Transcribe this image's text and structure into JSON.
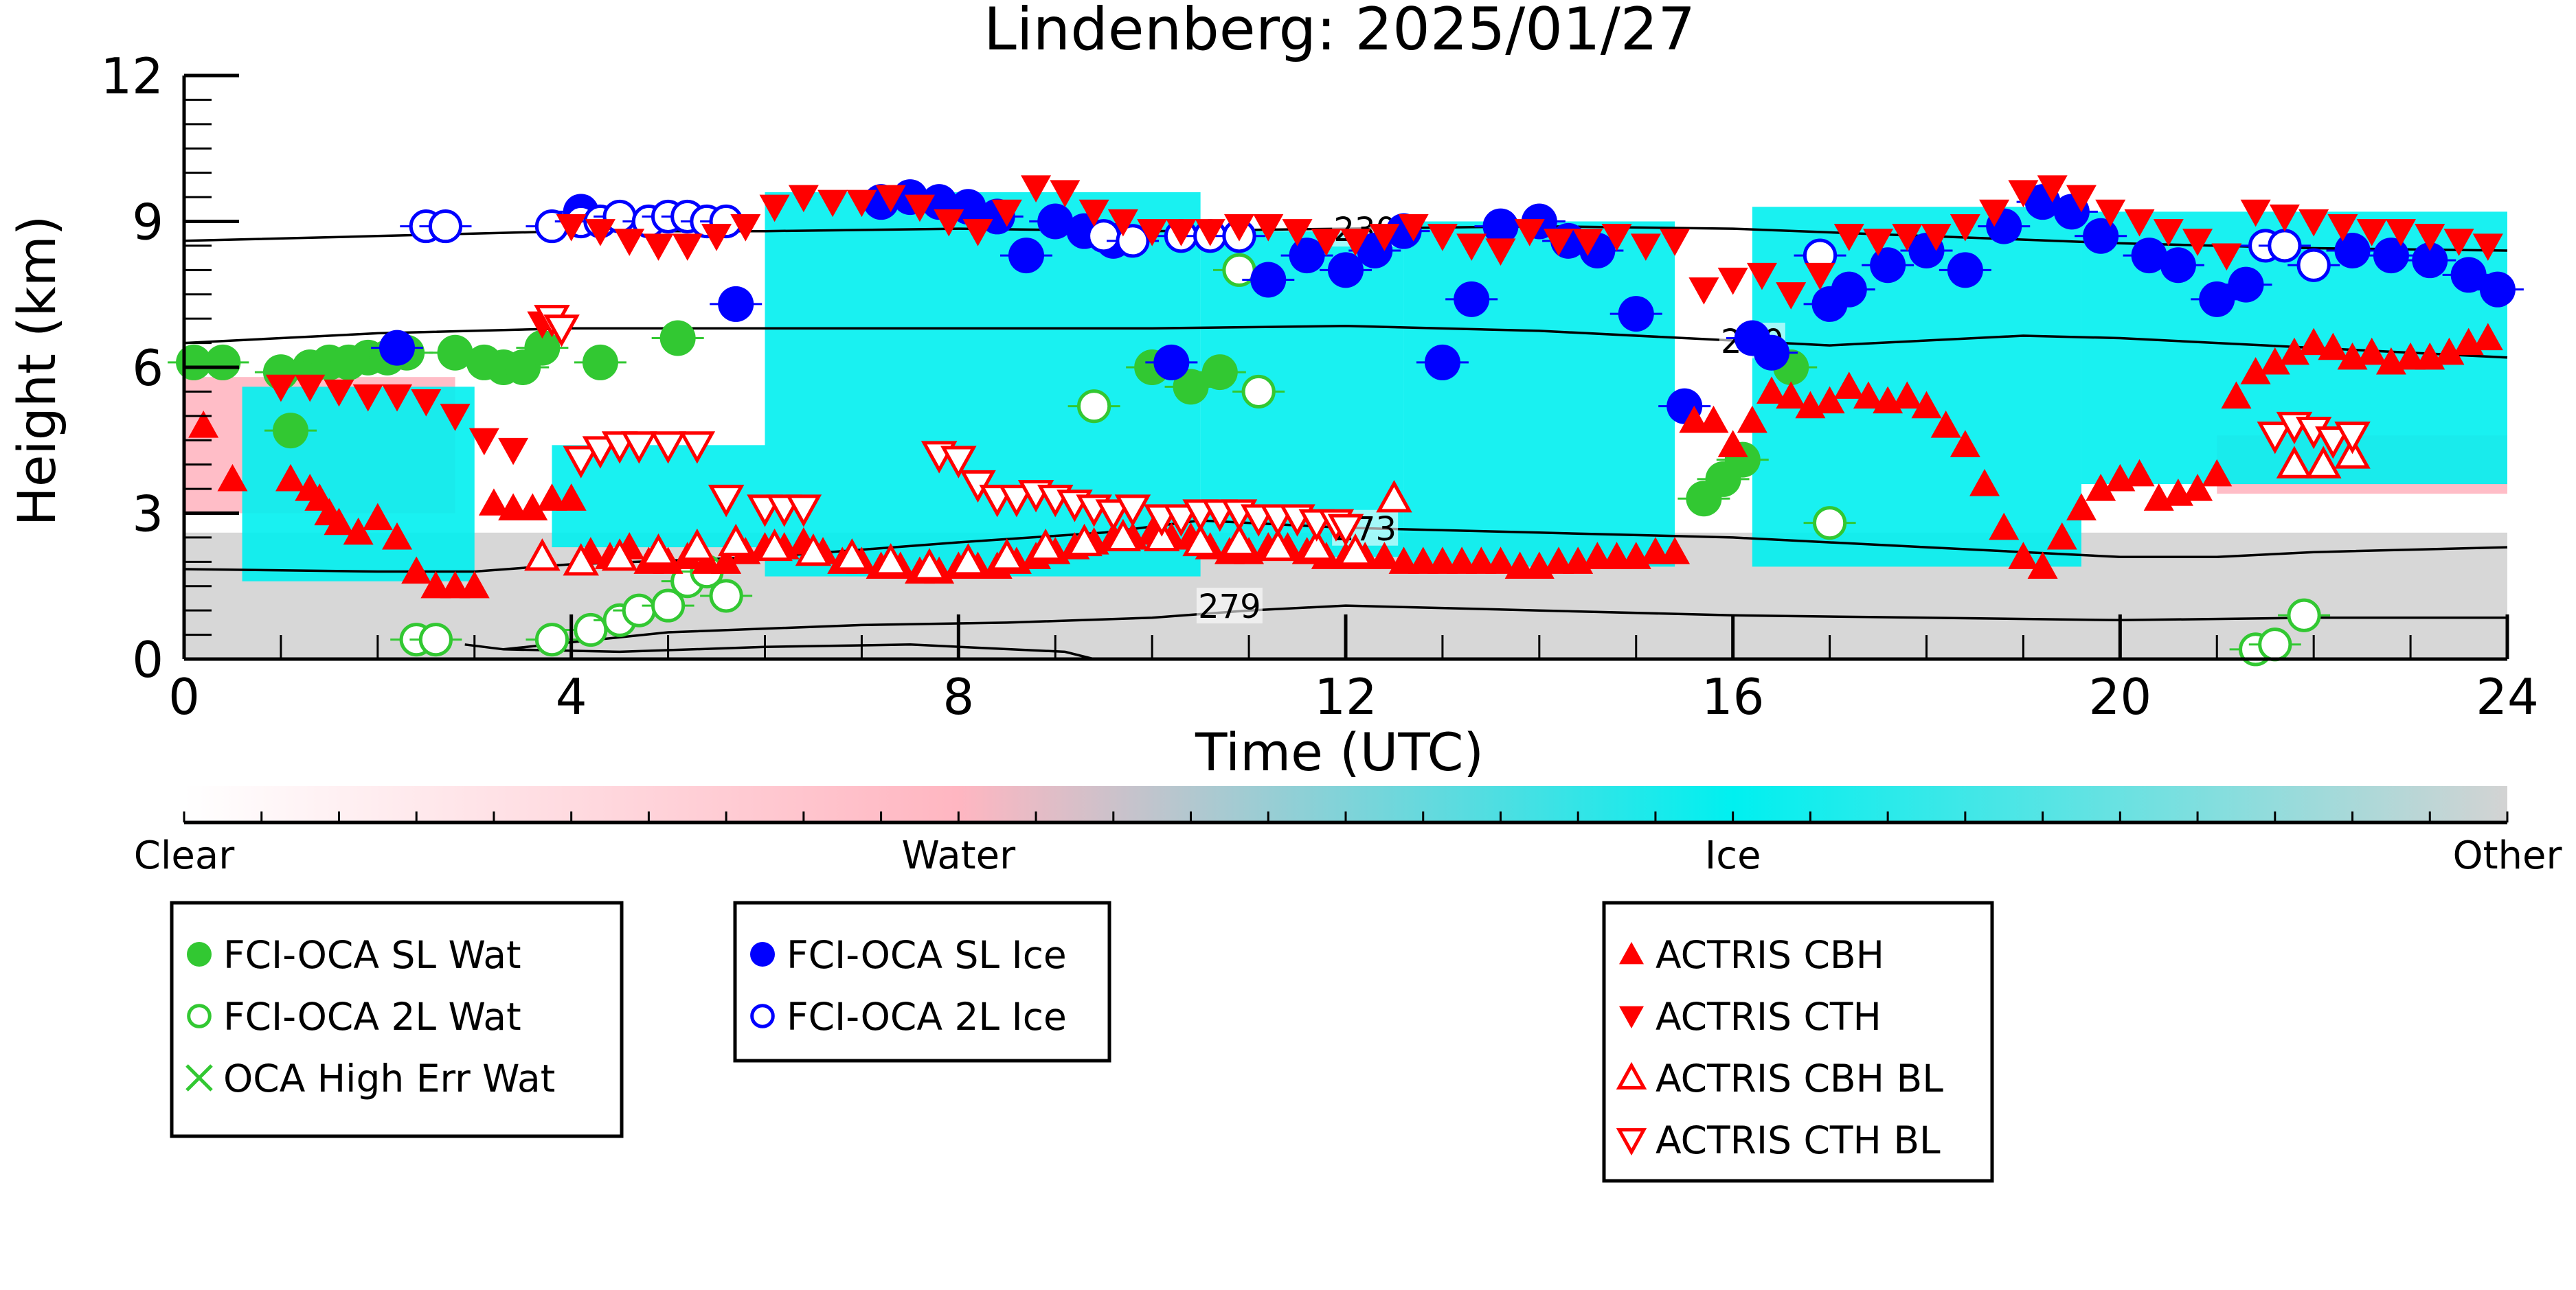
{
  "chart_data": {
    "type": "scatter",
    "title": "Lindenberg: 2025/01/27",
    "xlabel": "Time (UTC)",
    "ylabel": "Height (km)",
    "xlim": [
      0,
      24
    ],
    "ylim": [
      0,
      12
    ],
    "x_ticks": [
      "0",
      "4",
      "8",
      "12",
      "16",
      "20",
      "24"
    ],
    "y_ticks": [
      "0",
      "3",
      "6",
      "9",
      "12"
    ],
    "colorbar": {
      "labels": [
        "Clear",
        "Water",
        "Ice",
        "Other"
      ],
      "colors": [
        "#ffffff",
        "#ffb6c1",
        "#00f0f0",
        "#d3d3d3"
      ]
    },
    "classification_background": [
      {
        "class": "Ice",
        "x_range": [
          0.6,
          3.0
        ],
        "bottom": 1.6,
        "top": 5.6
      },
      {
        "class": "Ice",
        "x_range": [
          3.8,
          6.0
        ],
        "bottom": 2.3,
        "top": 4.4
      },
      {
        "class": "Ice",
        "x_range": [
          6.0,
          10.5
        ],
        "bottom": 1.7,
        "top": 9.6
      },
      {
        "class": "Ice",
        "x_range": [
          10.5,
          12.6
        ],
        "bottom": 2.1,
        "top": 8.8
      },
      {
        "class": "Ice",
        "x_range": [
          12.6,
          15.4
        ],
        "bottom": 1.9,
        "top": 9.0
      },
      {
        "class": "Ice",
        "x_range": [
          16.2,
          19.6
        ],
        "bottom": 1.9,
        "top": 9.3
      },
      {
        "class": "Ice",
        "x_range": [
          19.6,
          24.0
        ],
        "bottom": 3.6,
        "top": 9.2
      },
      {
        "class": "Water",
        "x_range": [
          0.0,
          2.8
        ],
        "bottom": 3.0,
        "top": 5.8
      },
      {
        "class": "Water",
        "x_range": [
          21.0,
          24.0
        ],
        "bottom": 3.4,
        "top": 4.6
      },
      {
        "class": "Other",
        "x_range": [
          0.0,
          24.0
        ],
        "bottom": 0.0,
        "top": 2.6
      }
    ],
    "contours": [
      {
        "label": "230",
        "points": [
          [
            0,
            8.6
          ],
          [
            2,
            8.7
          ],
          [
            4,
            8.8
          ],
          [
            6,
            8.8
          ],
          [
            8,
            8.85
          ],
          [
            10,
            8.8
          ],
          [
            12,
            8.85
          ],
          [
            14,
            8.9
          ],
          [
            16,
            8.85
          ],
          [
            18,
            8.7
          ],
          [
            20,
            8.55
          ],
          [
            22,
            8.45
          ],
          [
            24,
            8.4
          ]
        ]
      },
      {
        "label": "250",
        "points": [
          [
            0,
            6.5
          ],
          [
            2,
            6.7
          ],
          [
            4,
            6.8
          ],
          [
            6,
            6.8
          ],
          [
            8,
            6.8
          ],
          [
            10,
            6.8
          ],
          [
            12,
            6.85
          ],
          [
            14,
            6.75
          ],
          [
            16,
            6.55
          ],
          [
            17,
            6.45
          ],
          [
            18,
            6.55
          ],
          [
            19,
            6.65
          ],
          [
            20,
            6.6
          ],
          [
            21,
            6.5
          ],
          [
            22,
            6.4
          ],
          [
            24,
            6.2
          ]
        ]
      },
      {
        "label": "273",
        "points": [
          [
            0,
            1.85
          ],
          [
            2,
            1.8
          ],
          [
            3,
            1.8
          ],
          [
            4,
            1.95
          ],
          [
            6,
            2.1
          ],
          [
            8,
            2.4
          ],
          [
            9.5,
            2.6
          ],
          [
            10.5,
            2.85
          ],
          [
            12,
            2.7
          ],
          [
            14,
            2.6
          ],
          [
            16,
            2.5
          ],
          [
            18,
            2.3
          ],
          [
            20,
            2.1
          ],
          [
            21,
            2.1
          ],
          [
            22,
            2.2
          ],
          [
            24,
            2.3
          ]
        ]
      },
      {
        "label": "279",
        "points": [
          [
            3.3,
            0.2
          ],
          [
            5,
            0.55
          ],
          [
            7,
            0.7
          ],
          [
            8.5,
            0.75
          ],
          [
            10,
            0.85
          ],
          [
            11,
            1.0
          ],
          [
            12,
            1.1
          ],
          [
            14,
            1.0
          ],
          [
            16,
            0.9
          ],
          [
            18,
            0.85
          ],
          [
            20,
            0.8
          ],
          [
            22,
            0.85
          ],
          [
            24,
            0.85
          ]
        ]
      },
      {
        "label": "",
        "points": [
          [
            2.9,
            0.3
          ],
          [
            3.3,
            0.2
          ],
          [
            4.5,
            0.15
          ],
          [
            6,
            0.25
          ],
          [
            7.5,
            0.3
          ],
          [
            9.1,
            0.15
          ],
          [
            9.4,
            0.0
          ]
        ]
      }
    ],
    "legend": [
      {
        "label": "FCI-OCA SL Wat",
        "marker": "filled-circle",
        "color": "#32c832"
      },
      {
        "label": "FCI-OCA 2L Wat",
        "marker": "open-circle",
        "color": "#32c832"
      },
      {
        "label": "OCA High Err Wat",
        "marker": "x",
        "color": "#32c832"
      },
      {
        "label": "FCI-OCA SL Ice",
        "marker": "filled-circle",
        "color": "#0000ff"
      },
      {
        "label": "FCI-OCA 2L Ice",
        "marker": "open-circle",
        "color": "#0000ff"
      },
      {
        "label": "ACTRIS CBH",
        "marker": "triangle-up",
        "color": "#ff0000"
      },
      {
        "label": "ACTRIS CTH",
        "marker": "triangle-down",
        "color": "#ff0000"
      },
      {
        "label": "ACTRIS CBH BL",
        "marker": "open-triangle-up",
        "color": "#ff0000"
      },
      {
        "label": "ACTRIS CTH BL",
        "marker": "open-triangle-down",
        "color": "#ff0000"
      }
    ],
    "series": [
      {
        "name": "FCI-OCA SL Wat",
        "x": [
          0.1,
          0.4,
          1.0,
          1.1,
          1.3,
          1.5,
          1.7,
          1.9,
          2.1,
          2.3,
          2.8,
          3.1,
          3.3,
          3.5,
          3.7,
          4.3,
          5.1,
          10.0,
          10.4,
          10.7,
          15.7,
          15.9,
          16.1,
          16.6
        ],
        "y": [
          6.1,
          6.1,
          5.9,
          4.7,
          6.0,
          6.1,
          6.1,
          6.2,
          6.2,
          6.3,
          6.3,
          6.1,
          6.0,
          6.0,
          6.4,
          6.1,
          6.6,
          6.0,
          5.6,
          5.9,
          3.3,
          3.7,
          4.1,
          6.0
        ]
      },
      {
        "name": "FCI-OCA 2L Wat",
        "x": [
          2.4,
          2.6,
          3.8,
          4.2,
          4.5,
          4.7,
          5.0,
          5.2,
          5.4,
          5.6,
          9.4,
          10.9,
          11.1,
          17.0,
          21.4,
          21.6,
          21.9
        ],
        "y": [
          0.4,
          0.4,
          0.4,
          0.6,
          0.8,
          1.0,
          1.1,
          1.6,
          1.8,
          1.3,
          5.2,
          8.0,
          5.5,
          2.8,
          0.2,
          0.3,
          0.9
        ]
      },
      {
        "name": "FCI-OCA SL Ice",
        "x": [
          2.2,
          4.1,
          5.7,
          7.2,
          7.5,
          7.8,
          8.1,
          8.4,
          8.7,
          9.0,
          9.3,
          9.6,
          10.2,
          11.2,
          11.6,
          12.0,
          12.3,
          12.6,
          13.0,
          13.3,
          13.6,
          14.0,
          14.3,
          14.6,
          15.0,
          15.5,
          16.2,
          16.4,
          17.0,
          17.2,
          17.6,
          18.0,
          18.4,
          18.8,
          19.2,
          19.5,
          19.8,
          20.3,
          20.6,
          21.0,
          21.3,
          22.4,
          22.8,
          23.2,
          23.6,
          23.9
        ],
        "y": [
          6.4,
          9.2,
          7.3,
          9.4,
          9.5,
          9.4,
          9.3,
          9.1,
          8.3,
          9.0,
          8.8,
          8.6,
          6.1,
          7.8,
          8.3,
          8.0,
          8.4,
          8.8,
          6.1,
          7.4,
          8.9,
          9.0,
          8.6,
          8.4,
          7.1,
          5.2,
          6.6,
          6.3,
          7.3,
          7.6,
          8.1,
          8.4,
          8.0,
          8.9,
          9.4,
          9.2,
          8.7,
          8.3,
          8.1,
          7.4,
          7.7,
          8.4,
          8.3,
          8.2,
          7.9,
          7.6
        ]
      },
      {
        "name": "FCI-OCA 2L Ice",
        "x": [
          2.5,
          2.7,
          3.8,
          4.1,
          4.3,
          4.5,
          4.8,
          5.0,
          5.2,
          5.4,
          5.6,
          9.5,
          9.8,
          10.3,
          10.6,
          10.9,
          16.9,
          21.5,
          21.7,
          22.0
        ],
        "y": [
          8.9,
          8.9,
          8.9,
          9.0,
          9.0,
          9.1,
          9.0,
          9.1,
          9.1,
          9.0,
          9.0,
          8.7,
          8.6,
          8.7,
          8.7,
          8.7,
          8.3,
          8.5,
          8.5,
          8.1
        ]
      },
      {
        "name": "ACTRIS CBH",
        "x": [
          0.2,
          0.5,
          1.1,
          1.3,
          1.4,
          1.5,
          1.6,
          1.8,
          2.0,
          2.2,
          2.4,
          2.6,
          2.8,
          3.0,
          3.2,
          3.4,
          3.6,
          3.8,
          4.0,
          4.2,
          4.4,
          4.6,
          4.8,
          5.0,
          5.2,
          5.4,
          5.6,
          5.8,
          6.0,
          6.2,
          6.4,
          6.6,
          6.8,
          7.0,
          7.2,
          7.4,
          7.6,
          7.8,
          8.0,
          8.2,
          8.4,
          8.6,
          8.8,
          9.0,
          9.2,
          9.4,
          9.6,
          9.8,
          10.0,
          10.2,
          10.4,
          10.6,
          10.8,
          11.0,
          11.2,
          11.4,
          11.6,
          11.8,
          12.0,
          12.2,
          12.4,
          12.6,
          12.8,
          13.0,
          13.2,
          13.4,
          13.6,
          13.8,
          14.0,
          14.2,
          14.4,
          14.6,
          14.8,
          15.0,
          15.2,
          15.4,
          15.6,
          15.8,
          16.0,
          16.2,
          16.4,
          16.6,
          16.8,
          17.0,
          17.2,
          17.4,
          17.6,
          17.8,
          18.0,
          18.2,
          18.4,
          18.6,
          18.8,
          19.0,
          19.2,
          19.4,
          19.6,
          19.8,
          20.0,
          20.2,
          20.4,
          20.6,
          20.8,
          21.0,
          21.2,
          21.4,
          21.6,
          21.8,
          22.0,
          22.2,
          22.4,
          22.6,
          22.8,
          23.0,
          23.2,
          23.4,
          23.6,
          23.8
        ],
        "y": [
          4.8,
          3.7,
          3.7,
          3.5,
          3.3,
          3.0,
          2.8,
          2.6,
          2.9,
          2.5,
          1.8,
          1.5,
          1.5,
          1.5,
          3.2,
          3.1,
          3.1,
          3.3,
          3.3,
          2.2,
          2.1,
          2.3,
          2.0,
          2.0,
          2.1,
          2.0,
          2.0,
          2.2,
          2.3,
          2.3,
          2.4,
          2.2,
          2.0,
          2.0,
          1.9,
          1.9,
          1.8,
          1.8,
          1.9,
          1.9,
          1.9,
          2.0,
          2.1,
          2.2,
          2.3,
          2.4,
          2.5,
          2.5,
          2.6,
          2.5,
          2.5,
          2.3,
          2.2,
          2.2,
          2.3,
          2.3,
          2.2,
          2.1,
          2.1,
          2.1,
          2.1,
          2.0,
          2.0,
          2.0,
          2.0,
          2.0,
          2.0,
          1.9,
          1.9,
          2.0,
          2.0,
          2.1,
          2.1,
          2.1,
          2.2,
          2.2,
          4.9,
          4.9,
          4.4,
          4.9,
          5.5,
          5.4,
          5.2,
          5.3,
          5.6,
          5.4,
          5.3,
          5.4,
          5.2,
          4.8,
          4.4,
          3.6,
          2.7,
          2.1,
          1.9,
          2.5,
          3.1,
          3.5,
          3.7,
          3.8,
          3.3,
          3.4,
          3.5,
          3.8,
          5.4,
          5.9,
          6.1,
          6.3,
          6.5,
          6.4,
          6.2,
          6.3,
          6.1,
          6.2,
          6.2,
          6.3,
          6.5,
          6.6
        ]
      },
      {
        "name": "ACTRIS CTH",
        "x": [
          1.0,
          1.3,
          1.6,
          1.9,
          2.2,
          2.5,
          2.8,
          3.1,
          3.4,
          3.7,
          4.0,
          4.3,
          4.6,
          4.9,
          5.2,
          5.5,
          5.8,
          6.1,
          6.4,
          6.7,
          7.0,
          7.3,
          7.6,
          7.9,
          8.2,
          8.5,
          8.8,
          9.1,
          9.4,
          9.7,
          10.0,
          10.3,
          10.6,
          10.9,
          11.2,
          11.5,
          11.8,
          12.1,
          12.4,
          12.7,
          13.0,
          13.3,
          13.6,
          13.9,
          14.2,
          14.5,
          14.8,
          15.1,
          15.4,
          15.7,
          16.0,
          16.3,
          16.6,
          16.9,
          17.2,
          17.5,
          17.8,
          18.1,
          18.4,
          18.7,
          19.0,
          19.3,
          19.6,
          19.9,
          20.2,
          20.5,
          20.8,
          21.1,
          21.4,
          21.7,
          22.0,
          22.3,
          22.6,
          22.9,
          23.2,
          23.5,
          23.8
        ],
        "y": [
          5.6,
          5.6,
          5.5,
          5.4,
          5.4,
          5.3,
          5.0,
          4.5,
          4.3,
          6.9,
          8.9,
          8.8,
          8.6,
          8.5,
          8.5,
          8.7,
          8.9,
          9.3,
          9.5,
          9.4,
          9.4,
          9.5,
          9.3,
          9.0,
          8.8,
          9.2,
          9.7,
          9.6,
          9.2,
          9.0,
          8.8,
          8.8,
          8.8,
          8.9,
          8.9,
          8.8,
          8.6,
          8.6,
          8.7,
          8.9,
          8.7,
          8.5,
          8.4,
          8.8,
          8.6,
          8.6,
          8.7,
          8.5,
          8.6,
          7.6,
          7.8,
          7.9,
          7.5,
          7.9,
          8.7,
          8.6,
          8.7,
          8.7,
          8.9,
          9.2,
          9.6,
          9.7,
          9.5,
          9.2,
          9.0,
          8.8,
          8.6,
          8.3,
          9.2,
          9.1,
          9.0,
          8.9,
          8.8,
          8.8,
          8.7,
          8.6,
          8.5
        ]
      },
      {
        "name": "ACTRIS CBH BL",
        "x": [
          3.7,
          4.1,
          4.5,
          4.9,
          5.3,
          5.7,
          6.1,
          6.5,
          6.9,
          7.3,
          7.7,
          8.1,
          8.5,
          8.9,
          9.3,
          9.7,
          10.1,
          10.5,
          10.9,
          11.3,
          11.7,
          12.1,
          12.5,
          21.8,
          22.1,
          22.4
        ],
        "y": [
          2.1,
          2.0,
          2.1,
          2.2,
          2.3,
          2.4,
          2.3,
          2.2,
          2.1,
          2.0,
          1.9,
          2.0,
          2.1,
          2.3,
          2.4,
          2.5,
          2.5,
          2.4,
          2.4,
          2.3,
          2.3,
          2.2,
          3.3,
          4.0,
          4.0,
          4.2
        ]
      },
      {
        "name": "ACTRIS CTH BL",
        "x": [
          3.8,
          3.9,
          4.1,
          4.3,
          4.5,
          4.7,
          5.0,
          5.3,
          5.6,
          6.0,
          6.2,
          6.4,
          7.8,
          8.0,
          8.2,
          8.4,
          8.6,
          8.8,
          9.0,
          9.2,
          9.4,
          9.6,
          9.8,
          10.1,
          10.3,
          10.5,
          10.7,
          10.9,
          11.1,
          11.3,
          11.5,
          11.7,
          11.9,
          12.0,
          21.6,
          21.8,
          22.0,
          22.2,
          22.4
        ],
        "y": [
          7.0,
          6.8,
          4.1,
          4.3,
          4.4,
          4.4,
          4.4,
          4.4,
          3.3,
          3.1,
          3.1,
          3.1,
          4.2,
          4.1,
          3.6,
          3.3,
          3.3,
          3.4,
          3.3,
          3.2,
          3.1,
          3.0,
          3.1,
          2.9,
          2.9,
          3.0,
          3.0,
          3.0,
          2.9,
          2.9,
          2.9,
          2.8,
          2.8,
          2.7,
          4.6,
          4.8,
          4.7,
          4.5,
          4.6
        ]
      }
    ]
  }
}
